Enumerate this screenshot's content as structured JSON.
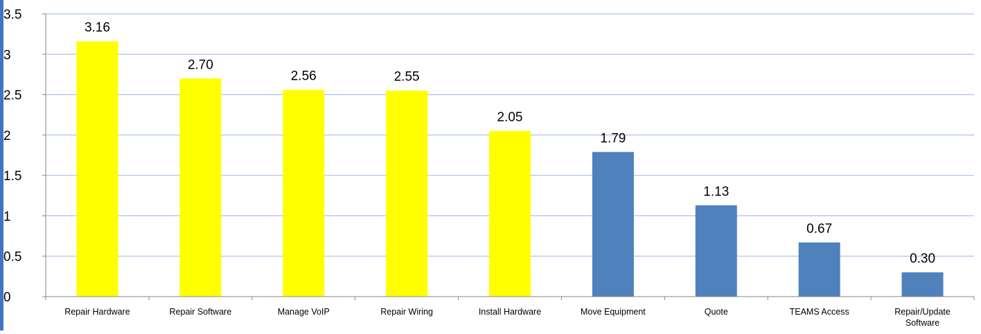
{
  "chart_data": {
    "type": "bar",
    "title": "",
    "xlabel": "",
    "ylabel": "",
    "categories": [
      "Repair Hardware",
      "Repair Software",
      "Manage VoIP",
      "Repair Wiring",
      "Install Hardware",
      "Move Equipment",
      "Quote",
      "TEAMS Access",
      "Repair/Update Software"
    ],
    "values": [
      3.16,
      2.7,
      2.56,
      2.55,
      2.05,
      1.79,
      1.13,
      0.67,
      0.3
    ],
    "data_labels": [
      "3.16",
      "2.70",
      "2.56",
      "2.55",
      "2.05",
      "1.79",
      "1.13",
      "0.67",
      "0.30"
    ],
    "bar_colors": [
      "#FFFF00",
      "#FFFF00",
      "#FFFF00",
      "#FFFF00",
      "#FFFF00",
      "#4F81BD",
      "#4F81BD",
      "#4F81BD",
      "#4F81BD"
    ],
    "ylim": [
      0,
      3.5
    ],
    "yticks": [
      "0",
      "0.5",
      "1",
      "1.5",
      "2",
      "2.5",
      "3",
      "3.5"
    ],
    "grid": true,
    "gridline_color": "#99B3E6",
    "legend": "none"
  }
}
